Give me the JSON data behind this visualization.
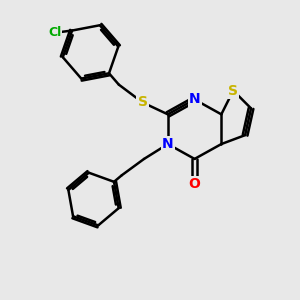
{
  "bg_color": "#e8e8e8",
  "bond_color": "#000000",
  "bond_width": 1.8,
  "atom_colors": {
    "S": "#c8b400",
    "N": "#0000ff",
    "O": "#ff0000",
    "Cl": "#00aa00",
    "C": "#000000"
  },
  "font_size": 10,
  "figsize": [
    3.0,
    3.0
  ],
  "dpi": 100
}
